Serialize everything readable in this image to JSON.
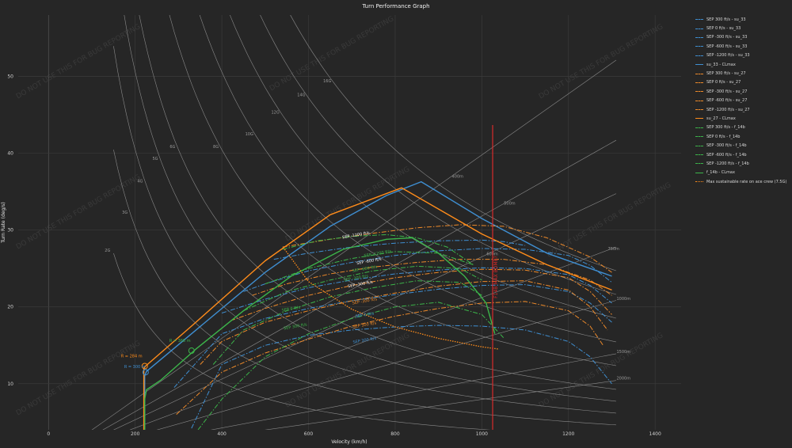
{
  "chart_data": {
    "type": "line",
    "title": "Turn Performance Graph",
    "xlabel": "Velocity (km/h)",
    "ylabel": "Turn Rate (deg/s)",
    "xlim": [
      -70,
      1460
    ],
    "ylim": [
      4,
      58
    ],
    "x_ticks": [
      0,
      200,
      400,
      600,
      800,
      1000,
      1200,
      1400
    ],
    "y_ticks": [
      10,
      20,
      30,
      40,
      50
    ],
    "grid": true,
    "legend_position": "right",
    "watermark": "DO NOT USE THIS FOR BUG REPORTING",
    "series": [
      {
        "name": "SEP 300 ft/s - su_33",
        "color": "#3f8fd2",
        "style": "dashdot",
        "x": [
          330,
          400,
          500,
          600,
          700,
          800,
          900,
          1000,
          1100,
          1200,
          1250,
          1300
        ],
        "y": [
          4.2,
          12.5,
          15,
          16.3,
          17,
          17.4,
          17.6,
          17.5,
          17,
          15.5,
          13.5,
          10
        ]
      },
      {
        "name": "SEP 0 ft/s - su_33",
        "color": "#3f8fd2",
        "style": "dashdot",
        "x": [
          290,
          400,
          500,
          600,
          700,
          800,
          900,
          1000,
          1100,
          1200,
          1250,
          1300
        ],
        "y": [
          9.5,
          16.5,
          18.5,
          19.8,
          20.8,
          21.6,
          22.3,
          22.8,
          22.9,
          22,
          20.5,
          18
        ]
      },
      {
        "name": "SEP -300 ft/s - su_33",
        "color": "#3f8fd2",
        "style": "dashdot",
        "x": [
          400,
          500,
          600,
          700,
          800,
          900,
          1000,
          1100,
          1200,
          1250,
          1300
        ],
        "y": [
          19.2,
          21,
          22.5,
          23.5,
          24.3,
          24.8,
          25.1,
          25,
          24.2,
          22.8,
          20.5
        ]
      },
      {
        "name": "SEP -600 ft/s - su_33",
        "color": "#3f8fd2",
        "style": "dashdot",
        "x": [
          450,
          500,
          600,
          700,
          800,
          900,
          1000,
          1100,
          1200,
          1250,
          1300
        ],
        "y": [
          22,
          23,
          24.7,
          25.8,
          26.7,
          27.3,
          27.6,
          27.5,
          26.7,
          25.4,
          23.2
        ]
      },
      {
        "name": "SEP -1200 ft/s - su_33",
        "color": "#3f8fd2",
        "style": "dashdot",
        "x": [
          520,
          600,
          700,
          800,
          900,
          1000,
          1050,
          1100
        ],
        "y": [
          26.2,
          27,
          27.8,
          28.3,
          28.6,
          28.7,
          28.5,
          28
        ]
      },
      {
        "name": "su_33 - CLmax",
        "color": "#3f8fd2",
        "style": "solid",
        "x": [
          222,
          222,
          226,
          330,
          500,
          650,
          780,
          860,
          1000,
          1150,
          1300
        ],
        "y": [
          4,
          11,
          11.6,
          16.5,
          24.5,
          30.5,
          34.5,
          36.3,
          31.5,
          27,
          24
        ]
      },
      {
        "name": "SEP 300 ft/s - su_27",
        "color": "#ee8a2a",
        "style": "dashdot",
        "x": [
          295,
          400,
          500,
          600,
          700,
          800,
          900,
          1000,
          1100,
          1200,
          1250,
          1280
        ],
        "y": [
          6,
          11.5,
          14,
          15.8,
          17.5,
          18.8,
          19.8,
          20.5,
          20.7,
          19.5,
          17.5,
          15
        ]
      },
      {
        "name": "SEP 0 ft/s - su_27",
        "color": "#ee8a2a",
        "style": "dashdot",
        "x": [
          350,
          400,
          500,
          600,
          700,
          800,
          900,
          1000,
          1100,
          1200,
          1250,
          1290
        ],
        "y": [
          12.5,
          15.5,
          18,
          19.5,
          20.8,
          21.8,
          22.7,
          23.3,
          23.4,
          22.2,
          20,
          17
        ]
      },
      {
        "name": "SEP -300 ft/s - su_27",
        "color": "#ee8a2a",
        "style": "dashdot",
        "x": [
          420,
          500,
          600,
          700,
          800,
          900,
          1000,
          1100,
          1200,
          1250,
          1300
        ],
        "y": [
          18.2,
          19.8,
          21.5,
          22.8,
          23.8,
          24.5,
          24.9,
          24.8,
          23.8,
          22,
          19
        ]
      },
      {
        "name": "SEP -600 ft/s - su_27",
        "color": "#ee8a2a",
        "style": "dashdot",
        "x": [
          470,
          550,
          650,
          750,
          850,
          950,
          1050,
          1150,
          1250,
          1300
        ],
        "y": [
          21.5,
          23,
          24.3,
          25.2,
          25.8,
          26.2,
          26.2,
          25.5,
          23.5,
          21.5
        ]
      },
      {
        "name": "SEP -1200 ft/s - su_27",
        "color": "#ee8a2a",
        "style": "dashdot",
        "x": [
          540,
          650,
          750,
          850,
          950,
          1050,
          1150,
          1250,
          1300
        ],
        "y": [
          27.8,
          28.8,
          29.6,
          30.3,
          30.7,
          30.5,
          29,
          26.5,
          24.5
        ]
      },
      {
        "name": "su_27 - CLmax",
        "color": "#ff8c1a",
        "style": "solid",
        "x": [
          220,
          220,
          224,
          330,
          500,
          650,
          815,
          1000,
          1150,
          1300
        ],
        "y": [
          4,
          12,
          12.3,
          17.5,
          26,
          32,
          35.5,
          29.5,
          25.5,
          22.2
        ]
      },
      {
        "name": "SEP 300 ft/s - f_14b",
        "color": "#3cb54a",
        "style": "dashdot",
        "x": [
          345,
          400,
          500,
          600,
          700,
          800,
          900,
          1000,
          1050
        ],
        "y": [
          4,
          8,
          13.5,
          16.5,
          18.5,
          20,
          20.6,
          19,
          16
        ]
      },
      {
        "name": "SEP 0 ft/s - f_14b",
        "color": "#3cb54a",
        "style": "dashdot",
        "x": [
          380,
          450,
          550,
          650,
          750,
          850,
          950,
          1000
        ],
        "y": [
          12.5,
          17,
          19.5,
          21.3,
          22.5,
          23.4,
          23.2,
          21.5
        ]
      },
      {
        "name": "SEP -300 ft/s - f_14b",
        "color": "#3cb54a",
        "style": "dashdot",
        "x": [
          450,
          550,
          650,
          750,
          850,
          950,
          1000
        ],
        "y": [
          19.5,
          22,
          23.5,
          24.7,
          25.3,
          25,
          23.5
        ]
      },
      {
        "name": "SEP -600 ft/s - f_14b",
        "color": "#3cb54a",
        "style": "dashdot",
        "x": [
          500,
          600,
          700,
          800,
          900,
          980
        ],
        "y": [
          23,
          25,
          26.3,
          27.2,
          27,
          25.5
        ]
      },
      {
        "name": "SEP -1200 ft/s - f_14b",
        "color": "#3cb54a",
        "style": "dashdot",
        "x": [
          540,
          620,
          700,
          780,
          850,
          920,
          980
        ],
        "y": [
          27.5,
          28.6,
          29.2,
          29.4,
          29,
          27.8,
          25.5
        ]
      },
      {
        "name": "f_14b - CLmax",
        "color": "#3cb54a",
        "style": "solid",
        "x": [
          222,
          222,
          226,
          260,
          340,
          450,
          560,
          680,
          780,
          840,
          900,
          960,
          1010,
          1030
        ],
        "y": [
          4,
          8,
          9.2,
          10.5,
          14.5,
          19.5,
          24,
          27.5,
          28.8,
          29,
          27,
          24,
          20.5,
          16.5
        ]
      },
      {
        "name": "Max sustainable rate on ace crew (7.5G)",
        "color": "#ff8c1a",
        "style": "dotted",
        "x": [
          545,
          600,
          700,
          800,
          900,
          1000,
          1040
        ],
        "y": [
          27.5,
          23.3,
          19.7,
          17.4,
          15.9,
          14.8,
          14.5
        ]
      }
    ],
    "g_lines": {
      "labels": [
        "2G",
        "3G",
        "4G",
        "5G",
        "6G",
        "8G",
        "10G",
        "12G",
        "14G",
        "16G"
      ],
      "g_values": [
        2,
        3,
        4,
        5,
        6,
        8,
        10,
        12,
        14,
        16
      ]
    },
    "radius_lines": {
      "labels": [
        "400m",
        "500m",
        "600m",
        "750m",
        "1000m",
        "1500m",
        "2000m"
      ],
      "radius_m": [
        400,
        500,
        600,
        750,
        1000,
        1500,
        2000
      ]
    },
    "vertical_marker": {
      "label": "F14B MAX BOMB?",
      "x": 1025,
      "color": "#d92b2b"
    },
    "annotations": [
      {
        "text": "R = 284 m",
        "color": "#ff8c1a",
        "x": 222,
        "y": 12.3
      },
      {
        "text": "R = 300 m",
        "color": "#3f8fd2",
        "x": 224,
        "y": 11.5
      },
      {
        "text": "R = 368 m",
        "color": "#3cb54a",
        "x": 330,
        "y": 14.3
      }
    ],
    "curve_labels": [
      {
        "text": "SEP -1200 ft/s",
        "color": "#f0f0f0",
        "x": 710,
        "y": 29.2
      },
      {
        "text": "SEP -1200 ft/s",
        "color": "#3cb54a",
        "x": 760,
        "y": 26.8
      },
      {
        "text": "SEP -600 ft/s",
        "color": "#f0f0f0",
        "x": 740,
        "y": 25.8
      },
      {
        "text": "SEP -600 ft/s",
        "color": "#3cb54a",
        "x": 730,
        "y": 24.8
      },
      {
        "text": "SEP -300 ft/s",
        "color": "#3cb54a",
        "x": 710,
        "y": 23.6
      },
      {
        "text": "SEP -300 ft/s",
        "color": "#f0f0f0",
        "x": 720,
        "y": 22.8
      },
      {
        "text": "SEP 0 ft/s",
        "color": "#3cb54a",
        "x": 560,
        "y": 19.6
      },
      {
        "text": "SEP -300 ft/s",
        "color": "#ee8a2a",
        "x": 730,
        "y": 20.6
      },
      {
        "text": "SEP 0 ft/s",
        "color": "#3f8fd2",
        "x": 730,
        "y": 18.8
      },
      {
        "text": "SEP 300 ft/s",
        "color": "#3cb54a",
        "x": 570,
        "y": 17.3
      },
      {
        "text": "SEP 300 ft/s",
        "color": "#ee8a2a",
        "x": 730,
        "y": 17.5
      },
      {
        "text": "SEP 300 ft/s",
        "color": "#3f8fd2",
        "x": 730,
        "y": 15.5
      }
    ]
  }
}
